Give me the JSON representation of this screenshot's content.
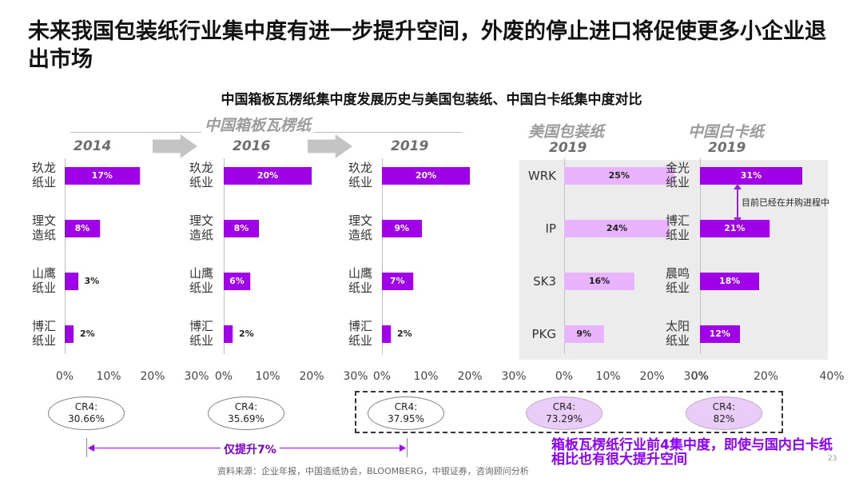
{
  "title": "未来我国包装纸行业集中度有进一步提升空间，外废的停止进口将促使更多小企业退出市场",
  "subtitle": "中国箱板瓦楞纸集中度发展历史与美国包装纸、中国白卡纸集中度对比",
  "group_china_container": "中国箱板瓦楞纸",
  "group_us": "美国包装纸",
  "group_china_white": "中国白卡纸",
  "annotation_acquisition": "目前已经在并购进程中",
  "annotation_rise": "仅提升7%",
  "annotation_gap": "箱板瓦楞纸行业前4集中度，即使与国内白卡纸相比也有很大提升空间",
  "source": "资料来源：企业年报，中国造纸协会，BLOOMBERG，中银证券，咨询顾问分析",
  "page_number": "23",
  "colors": {
    "strong": "#a000e8",
    "light": "#e8b4ff",
    "accent_text": "#8b00ff"
  },
  "chart_data": [
    {
      "type": "bar",
      "orientation": "horizontal",
      "year": "2014",
      "categories": [
        "玖龙纸业",
        "理文造纸",
        "山鹰纸业",
        "博汇纸业"
      ],
      "values": [
        17,
        8,
        3,
        2
      ],
      "value_labels": [
        "17%",
        "8%",
        "3%",
        "2%"
      ],
      "xlim": [
        0,
        30
      ],
      "xticks": [
        "0%",
        "10%",
        "20%",
        "30%"
      ],
      "cr4": "CR4:\n30.66%"
    },
    {
      "type": "bar",
      "orientation": "horizontal",
      "year": "2016",
      "categories": [
        "玖龙纸业",
        "理文造纸",
        "山鹰纸业",
        "博汇纸业"
      ],
      "values": [
        20,
        8,
        6,
        2
      ],
      "value_labels": [
        "20%",
        "8%",
        "6%",
        "2%"
      ],
      "xlim": [
        0,
        30
      ],
      "xticks": [
        "0%",
        "10%",
        "20%",
        "30%"
      ],
      "cr4": "CR4:\n35.69%"
    },
    {
      "type": "bar",
      "orientation": "horizontal",
      "year": "2019",
      "categories": [
        "玖龙纸业",
        "理文造纸",
        "山鹰纸业",
        "博汇纸业"
      ],
      "values": [
        20,
        9,
        7,
        2
      ],
      "value_labels": [
        "20%",
        "9%",
        "7%",
        "2%"
      ],
      "xlim": [
        0,
        30
      ],
      "xticks": [
        "0%",
        "10%",
        "20%",
        "30%"
      ],
      "cr4": "CR4:\n37.95%"
    },
    {
      "type": "bar",
      "orientation": "horizontal",
      "year": "2019",
      "categories": [
        "WRK",
        "IP",
        "SK3",
        "PKG"
      ],
      "values": [
        25,
        24,
        16,
        9
      ],
      "value_labels": [
        "25%",
        "24%",
        "16%",
        "9%"
      ],
      "xlim": [
        0,
        30
      ],
      "xticks": [
        "0%",
        "10%",
        "20%",
        "30%"
      ],
      "cr4": "CR4:\n73.29%"
    },
    {
      "type": "bar",
      "orientation": "horizontal",
      "year": "2019",
      "categories": [
        "金光纸业",
        "博汇纸业",
        "晨鸣纸业",
        "太阳纸业"
      ],
      "values": [
        31,
        21,
        18,
        12
      ],
      "value_labels": [
        "31%",
        "21%",
        "18%",
        "12%"
      ],
      "xlim": [
        0,
        40
      ],
      "xticks": [
        "0%",
        "20%",
        "40%"
      ],
      "cr4": "CR4:\n82%"
    }
  ]
}
